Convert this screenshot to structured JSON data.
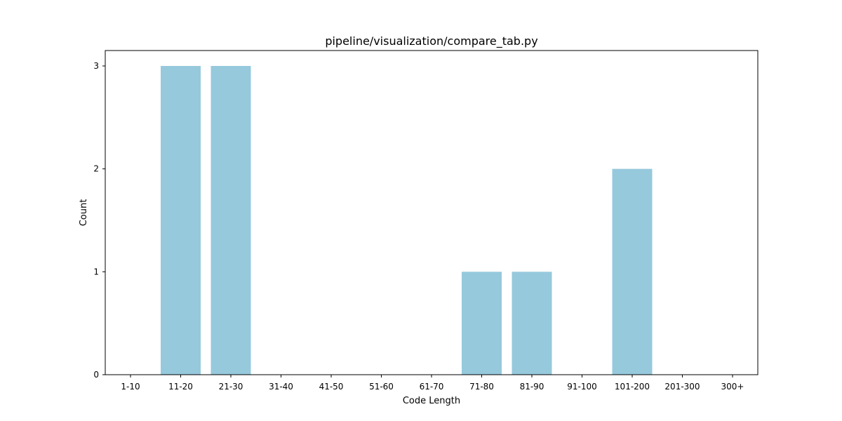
{
  "chart_data": {
    "type": "bar",
    "title": "pipeline/visualization/compare_tab.py",
    "xlabel": "Code Length",
    "ylabel": "Count",
    "categories": [
      "1-10",
      "11-20",
      "21-30",
      "31-40",
      "41-50",
      "51-60",
      "61-70",
      "71-80",
      "81-90",
      "91-100",
      "101-200",
      "201-300",
      "300+"
    ],
    "values": [
      0,
      3,
      3,
      0,
      0,
      0,
      0,
      1,
      1,
      0,
      2,
      0,
      0
    ],
    "yticks": [
      0,
      1,
      2,
      3
    ],
    "ylim": [
      0,
      3.15
    ],
    "grid": false,
    "legend": "none",
    "bar_color": "#96c9dc"
  }
}
